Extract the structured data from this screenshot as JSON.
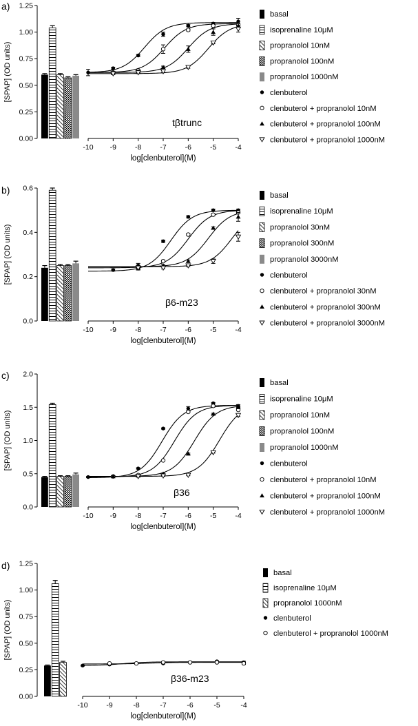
{
  "chart_data": [
    {
      "panel": "a)",
      "type": "bar+line",
      "annotation": "tβtrunc",
      "ylabel": "[SPAP] (OD units)",
      "xlabel": "log[clenbuterol](M)",
      "ylim": [
        0,
        1.25
      ],
      "yticks": [
        "0.00",
        "0.25",
        "0.50",
        "0.75",
        "1.00",
        "1.25"
      ],
      "xlim": [
        -10,
        -4
      ],
      "xticks": [
        "-10",
        "-9",
        "-8",
        "-7",
        "-6",
        "-5",
        "-4"
      ],
      "bars": [
        {
          "name": "basal",
          "value": 0.6,
          "err": 0.01,
          "style": "black"
        },
        {
          "name": "isoprenaline 10μM",
          "value": 1.04,
          "err": 0.02,
          "style": "hlines"
        },
        {
          "name": "propranolol 10nM",
          "value": 0.6,
          "err": 0.01,
          "style": "diag"
        },
        {
          "name": "propranolol 100nM",
          "value": 0.57,
          "err": 0.01,
          "style": "check"
        },
        {
          "name": "propranolol 1000nM",
          "value": 0.59,
          "err": 0.01,
          "style": "gray"
        }
      ],
      "series": [
        {
          "name": "clenbuterol",
          "marker": "filled-circle",
          "x": [
            -10,
            -9,
            -8,
            -7,
            -6,
            -5,
            -4
          ],
          "y": [
            0.62,
            0.66,
            0.78,
            0.98,
            1.06,
            1.08,
            1.1
          ],
          "err": [
            0.03,
            0.01,
            0.01,
            0.02,
            0.01,
            0.01,
            0.03
          ]
        },
        {
          "name": "clenbuterol + propranolol 10nM",
          "marker": "open-circle",
          "x": [
            -9,
            -8,
            -7,
            -6,
            -5,
            -4
          ],
          "y": [
            0.62,
            0.64,
            0.84,
            1.02,
            1.06,
            1.07
          ],
          "err": [
            0.01,
            0.01,
            0.04,
            0.01,
            0.01,
            0.01
          ]
        },
        {
          "name": "clenbuterol + propranolol 100nM",
          "marker": "filled-triangle",
          "x": [
            -9,
            -8,
            -7,
            -6,
            -5,
            -4
          ],
          "y": [
            0.62,
            0.63,
            0.67,
            0.84,
            1.0,
            1.06
          ],
          "err": [
            0.01,
            0.01,
            0.01,
            0.03,
            0.03,
            0.02
          ]
        },
        {
          "name": "clenbuterol + propranolol 1000nM",
          "marker": "open-triangle-down",
          "x": [
            -9,
            -8,
            -7,
            -6,
            -5,
            -4
          ],
          "y": [
            0.61,
            0.62,
            0.63,
            0.67,
            0.9,
            1.03
          ],
          "err": [
            0.01,
            0.01,
            0.01,
            0.01,
            0.01,
            0.03
          ]
        }
      ],
      "fits": [
        {
          "bottom": 0.62,
          "top": 1.09,
          "logEC50": -7.75
        },
        {
          "bottom": 0.62,
          "top": 1.08,
          "logEC50": -6.95
        },
        {
          "bottom": 0.62,
          "top": 1.08,
          "logEC50": -6.0
        },
        {
          "bottom": 0.61,
          "top": 1.08,
          "logEC50": -5.2
        }
      ]
    },
    {
      "panel": "b)",
      "type": "bar+line",
      "annotation": "β6-m23",
      "ylabel": "[SPAP] (OD units)",
      "xlabel": "log[clenbuterol](M)",
      "ylim": [
        0,
        0.6
      ],
      "yticks": [
        "0.0",
        "0.2",
        "0.4",
        "0.6"
      ],
      "xlim": [
        -10,
        -4
      ],
      "xticks": [
        "-10",
        "-9",
        "-8",
        "-7",
        "-6",
        "-5",
        "-4"
      ],
      "bars": [
        {
          "name": "basal",
          "value": 0.24,
          "err": 0.01,
          "style": "black"
        },
        {
          "name": "isoprenaline 10μM",
          "value": 0.59,
          "err": 0.01,
          "style": "hlines"
        },
        {
          "name": "propranolol 30nM",
          "value": 0.25,
          "err": 0.005,
          "style": "diag"
        },
        {
          "name": "propranolol 300nM",
          "value": 0.25,
          "err": 0.005,
          "style": "check"
        },
        {
          "name": "propranolol 3000nM",
          "value": 0.26,
          "err": 0.01,
          "style": "gray"
        }
      ],
      "series": [
        {
          "name": "clenbuterol",
          "marker": "filled-circle",
          "x": [
            -9,
            -8,
            -7,
            -6,
            -5,
            -4
          ],
          "y": [
            0.23,
            0.25,
            0.36,
            0.47,
            0.5,
            0.5
          ],
          "err": [
            0.005,
            0.01,
            0.005,
            0.005,
            0.005,
            0.005
          ]
        },
        {
          "name": "clenbuterol + propranolol 30nM",
          "marker": "open-circle",
          "x": [
            -8,
            -7,
            -6,
            -5,
            -4
          ],
          "y": [
            0.24,
            0.27,
            0.39,
            0.48,
            0.49
          ],
          "err": [
            0.01,
            0.005,
            0.005,
            0.005,
            0.005
          ]
        },
        {
          "name": "clenbuterol + propranolol 300nM",
          "marker": "filled-triangle",
          "x": [
            -8,
            -7,
            -6,
            -5,
            -4
          ],
          "y": [
            0.24,
            0.25,
            0.27,
            0.42,
            0.47
          ],
          "err": [
            0.01,
            0.005,
            0.005,
            0.005,
            0.02
          ]
        },
        {
          "name": "clenbuterol + propranolol 3000nM",
          "marker": "open-triangle-down",
          "x": [
            -8,
            -7,
            -6,
            -5,
            -4
          ],
          "y": [
            0.24,
            0.24,
            0.25,
            0.27,
            0.38
          ],
          "err": [
            0.005,
            0.005,
            0.005,
            0.01,
            0.02
          ]
        }
      ],
      "fits": [
        {
          "bottom": 0.225,
          "top": 0.5,
          "logEC50": -6.7
        },
        {
          "bottom": 0.24,
          "top": 0.5,
          "logEC50": -6.0
        },
        {
          "bottom": 0.245,
          "top": 0.5,
          "logEC50": -5.2
        },
        {
          "bottom": 0.245,
          "top": 0.5,
          "logEC50": -4.25
        }
      ]
    },
    {
      "panel": "c)",
      "type": "bar+line",
      "annotation": "β36",
      "ylabel": "[SPAP] (OD units)",
      "xlabel": "log[clenbuterol](M)",
      "ylim": [
        0,
        2.0
      ],
      "yticks": [
        "0.0",
        "0.5",
        "1.0",
        "1.5",
        "2.0"
      ],
      "xlim": [
        -10,
        -4
      ],
      "xticks": [
        "-10",
        "-9",
        "-8",
        "-7",
        "-6",
        "-5",
        "-4"
      ],
      "bars": [
        {
          "name": "basal",
          "value": 0.45,
          "err": 0.01,
          "style": "black"
        },
        {
          "name": "isoprenaline 10μM",
          "value": 1.54,
          "err": 0.02,
          "style": "hlines"
        },
        {
          "name": "propranolol 10nM",
          "value": 0.46,
          "err": 0.01,
          "style": "diag"
        },
        {
          "name": "propranolol 100nM",
          "value": 0.46,
          "err": 0.01,
          "style": "check"
        },
        {
          "name": "propranolol 1000nM",
          "value": 0.49,
          "err": 0.02,
          "style": "gray"
        }
      ],
      "series": [
        {
          "name": "clenbuterol",
          "marker": "filled-circle",
          "x": [
            -10,
            -9,
            -8,
            -7,
            -6,
            -5,
            -4
          ],
          "y": [
            0.45,
            0.46,
            0.58,
            1.18,
            1.48,
            1.56,
            1.52
          ],
          "err": [
            0.01,
            0.01,
            0.01,
            0.01,
            0.03,
            0.01,
            0.02
          ]
        },
        {
          "name": "clenbuterol + propranolol 10nM",
          "marker": "open-circle",
          "x": [
            -9,
            -8,
            -7,
            -6,
            -5,
            -4
          ],
          "y": [
            0.46,
            0.48,
            0.7,
            1.43,
            1.52,
            1.46
          ],
          "err": [
            0.01,
            0.01,
            0.01,
            0.01,
            0.01,
            0.01
          ]
        },
        {
          "name": "clenbuterol + propranolol 100nM",
          "marker": "filled-triangle",
          "x": [
            -9,
            -8,
            -7,
            -6,
            -5,
            -4
          ],
          "y": [
            0.46,
            0.47,
            0.5,
            0.8,
            1.4,
            1.5
          ],
          "err": [
            0.01,
            0.01,
            0.01,
            0.01,
            0.01,
            0.01
          ]
        },
        {
          "name": "clenbuterol + propranolol 1000nM",
          "marker": "open-triangle-down",
          "x": [
            -8,
            -7,
            -6,
            -5,
            -4
          ],
          "y": [
            0.46,
            0.47,
            0.48,
            0.82,
            1.38
          ],
          "err": [
            0.01,
            0.01,
            0.01,
            0.01,
            0.02
          ]
        }
      ],
      "fits": [
        {
          "bottom": 0.44,
          "top": 1.53,
          "logEC50": -7.05
        },
        {
          "bottom": 0.45,
          "top": 1.53,
          "logEC50": -6.55
        },
        {
          "bottom": 0.46,
          "top": 1.53,
          "logEC50": -5.75
        },
        {
          "bottom": 0.46,
          "top": 1.55,
          "logEC50": -4.75
        }
      ]
    },
    {
      "panel": "d)",
      "type": "bar+line",
      "annotation": "β36-m23",
      "ylabel": "[SPAP] (OD units)",
      "xlabel": "log[clenbuterol](M)",
      "ylim": [
        0,
        1.25
      ],
      "yticks": [
        "0.00",
        "0.25",
        "0.50",
        "0.75",
        "1.00",
        "1.25"
      ],
      "xlim": [
        -10,
        -4
      ],
      "xticks": [
        "-10",
        "-9",
        "-8",
        "-7",
        "-6",
        "-5",
        "-4"
      ],
      "bars": [
        {
          "name": "basal",
          "value": 0.29,
          "err": 0.005,
          "style": "black"
        },
        {
          "name": "isoprenaline 10μM",
          "value": 1.06,
          "err": 0.03,
          "style": "hlines"
        },
        {
          "name": "propranolol 1000nM",
          "value": 0.32,
          "err": 0.01,
          "style": "diag"
        }
      ],
      "series": [
        {
          "name": "clenbuterol",
          "marker": "filled-circle",
          "x": [
            -10,
            -9,
            -8,
            -7,
            -6,
            -5,
            -4
          ],
          "y": [
            0.29,
            0.3,
            0.31,
            0.31,
            0.32,
            0.33,
            0.32
          ],
          "err": [
            0.005,
            0.005,
            0.005,
            0.005,
            0.005,
            0.005,
            0.01
          ]
        },
        {
          "name": "clenbuterol + propranolol 1000nM",
          "marker": "open-circle",
          "x": [
            -9,
            -8,
            -7,
            -6,
            -5,
            -4
          ],
          "y": [
            0.31,
            0.31,
            0.32,
            0.32,
            0.32,
            0.31
          ],
          "err": [
            0.005,
            0.005,
            0.005,
            0.005,
            0.005,
            0.01
          ]
        }
      ],
      "fits": [
        {
          "bottom": 0.29,
          "top": 0.325,
          "logEC50": -8.5
        },
        {
          "bottom": 0.305,
          "top": 0.32,
          "logEC50": -7.5
        }
      ]
    }
  ]
}
